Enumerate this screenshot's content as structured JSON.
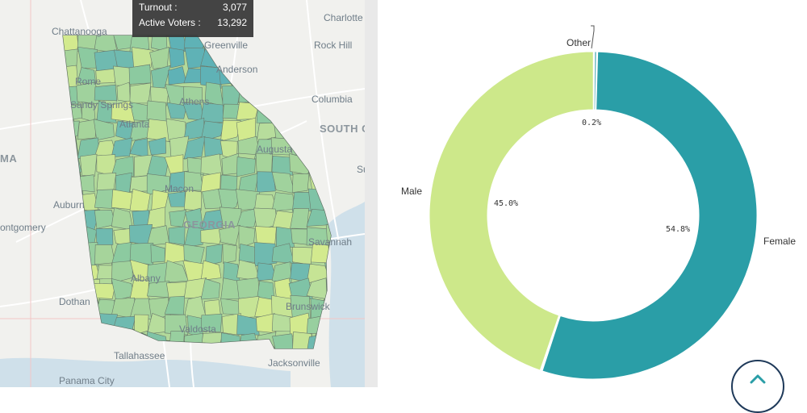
{
  "map": {
    "cities": [
      {
        "name": "Chattanooga"
      },
      {
        "name": "Charlotte"
      },
      {
        "name": "Greenville"
      },
      {
        "name": "Rock Hill"
      },
      {
        "name": "Anderson"
      },
      {
        "name": "Rome"
      },
      {
        "name": "Columbia"
      },
      {
        "name": "Sandy Springs"
      },
      {
        "name": "Athens"
      },
      {
        "name": "Atlanta"
      },
      {
        "name": "SOUTH C"
      },
      {
        "name": "MA"
      },
      {
        "name": "Augusta"
      },
      {
        "name": "Su"
      },
      {
        "name": "Macon"
      },
      {
        "name": "Auburn"
      },
      {
        "name": "GEORGIA"
      },
      {
        "name": "ontgomery"
      },
      {
        "name": "Savannah"
      },
      {
        "name": "Albany"
      },
      {
        "name": "Dothan"
      },
      {
        "name": "Brunswick"
      },
      {
        "name": "Valdosta"
      },
      {
        "name": "Tallahassee"
      },
      {
        "name": "Jacksonville"
      },
      {
        "name": "Panama City"
      }
    ],
    "tooltip": {
      "turnout_label": "Turnout :",
      "turnout_value": "3,077",
      "active_label": "Active Voters :",
      "active_value": "13,292"
    }
  },
  "chart_data": {
    "type": "pie",
    "style": "donut",
    "title": "",
    "categories": [
      "Female",
      "Male",
      "Other"
    ],
    "values": [
      54.8,
      45.0,
      0.2
    ],
    "labels": [
      "54.8%",
      "45.0%",
      "0.2%"
    ],
    "colors": [
      "#2a9ea7",
      "#cde88a",
      "#6ab7c0"
    ]
  },
  "scroll_button": {
    "icon": "chevron-up-icon"
  }
}
